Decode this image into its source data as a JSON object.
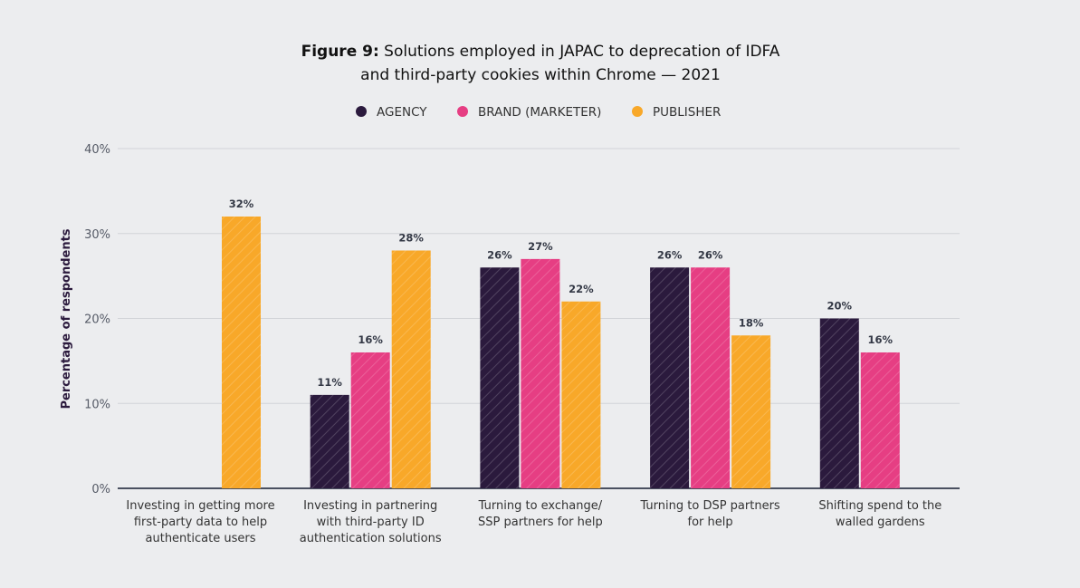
{
  "chart_data": {
    "type": "bar",
    "title_bold": "Figure 9:",
    "title_rest": " Solutions employed in JAPAC to deprecation of IDFA",
    "title_line2": "and third-party cookies within Chrome — 2021",
    "ylabel": "Percentage of respondents",
    "xlabel": "",
    "ylim": [
      0,
      40
    ],
    "yticks": [
      "0%",
      "10%",
      "20%",
      "30%",
      "40%"
    ],
    "ytick_values": [
      0,
      10,
      20,
      30,
      40
    ],
    "grid": true,
    "legend_position": "top",
    "categories": [
      [
        "Investing in getting more",
        "first-party data to help",
        "authenticate users"
      ],
      [
        "Investing in partnering",
        "with third-party ID",
        "authentication solutions"
      ],
      [
        "Turning to exchange/",
        "SSP partners for help"
      ],
      [
        "Turning to DSP partners",
        "for help"
      ],
      [
        "Shifting spend to the",
        "walled gardens"
      ]
    ],
    "series": [
      {
        "name": "AGENCY",
        "color": "#2b1a3d",
        "values": [
          null,
          11,
          26,
          26,
          20
        ]
      },
      {
        "name": "BRAND (MARKETER)",
        "color": "#e63e83",
        "values": [
          null,
          16,
          27,
          26,
          16
        ]
      },
      {
        "name": "PUBLISHER",
        "color": "#f8a829",
        "values": [
          32,
          28,
          22,
          18,
          null
        ]
      }
    ],
    "value_suffix": "%"
  }
}
